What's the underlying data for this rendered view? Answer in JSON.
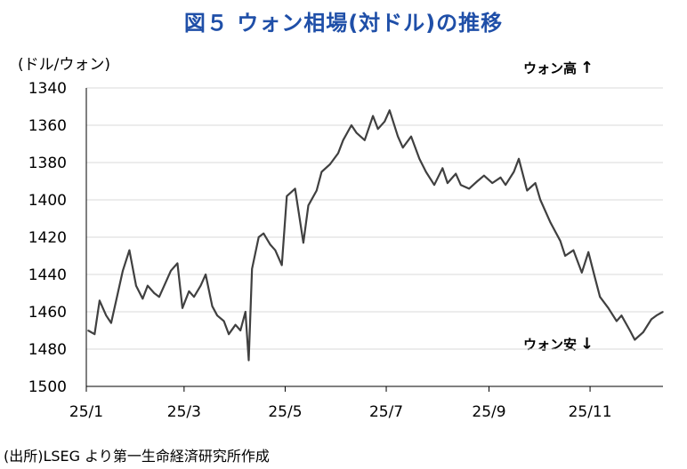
{
  "chart_data": {
    "type": "line",
    "title": "図５ ウォン相場(対ドル)の推移",
    "unit_label": "(ドル/ウォン)",
    "source": "(出所)LSEG より第一生命経済研究所作成",
    "annotation_top": "ウォン高",
    "annotation_bottom": "ウォン安",
    "arrow_up": "↑",
    "arrow_down": "↓",
    "y_inverted": true,
    "ylim": [
      1340,
      1500
    ],
    "yticks": [
      "1340",
      "1360",
      "1380",
      "1400",
      "1420",
      "1440",
      "1460",
      "1480",
      "1500"
    ],
    "xticks": [
      "25/1",
      "25/3",
      "25/5",
      "25/7",
      "25/9",
      "25/11"
    ],
    "grid": true,
    "line_color": "#404040",
    "series": [
      {
        "x": [
          "2025-01-02",
          "2025-01-06",
          "2025-01-09",
          "2025-01-13",
          "2025-01-16",
          "2025-01-20",
          "2025-01-23",
          "2025-01-27",
          "2025-01-31",
          "2025-02-04",
          "2025-02-07",
          "2025-02-11",
          "2025-02-14",
          "2025-02-18",
          "2025-02-21",
          "2025-02-25",
          "2025-02-28",
          "2025-03-04",
          "2025-03-07",
          "2025-03-11",
          "2025-03-14",
          "2025-03-18",
          "2025-03-21",
          "2025-03-25",
          "2025-03-28",
          "2025-04-01",
          "2025-04-04",
          "2025-04-07",
          "2025-04-09",
          "2025-04-11",
          "2025-04-15",
          "2025-04-18",
          "2025-04-22",
          "2025-04-25",
          "2025-04-29",
          "2025-05-02",
          "2025-05-07",
          "2025-05-12",
          "2025-05-15",
          "2025-05-20",
          "2025-05-23",
          "2025-05-28",
          "2025-06-02",
          "2025-06-05",
          "2025-06-10",
          "2025-06-13",
          "2025-06-18",
          "2025-06-23",
          "2025-06-26",
          "2025-06-30",
          "2025-07-03",
          "2025-07-08",
          "2025-07-11",
          "2025-07-16",
          "2025-07-21",
          "2025-07-25",
          "2025-07-30",
          "2025-08-04",
          "2025-08-07",
          "2025-08-12",
          "2025-08-15",
          "2025-08-20",
          "2025-08-25",
          "2025-08-29",
          "2025-09-03",
          "2025-09-08",
          "2025-09-11",
          "2025-09-16",
          "2025-09-19",
          "2025-09-24",
          "2025-09-29",
          "2025-10-02",
          "2025-10-08",
          "2025-10-14",
          "2025-10-17",
          "2025-10-22",
          "2025-10-27",
          "2025-10-31",
          "2025-11-04",
          "2025-11-07",
          "2025-11-12",
          "2025-11-17",
          "2025-11-20",
          "2025-11-25",
          "2025-11-28",
          "2025-12-03",
          "2025-12-08",
          "2025-12-11",
          "2025-12-15"
        ],
        "y": [
          1470,
          1472,
          1454,
          1462,
          1466,
          1450,
          1438,
          1427,
          1446,
          1453,
          1446,
          1450,
          1452,
          1444,
          1438,
          1434,
          1458,
          1449,
          1452,
          1446,
          1440,
          1457,
          1462,
          1465,
          1472,
          1467,
          1470,
          1460,
          1486,
          1437,
          1420,
          1418,
          1424,
          1427,
          1435,
          1398,
          1394,
          1423,
          1403,
          1395,
          1385,
          1381,
          1375,
          1368,
          1360,
          1364,
          1368,
          1355,
          1362,
          1358,
          1352,
          1366,
          1372,
          1366,
          1378,
          1385,
          1392,
          1383,
          1391,
          1386,
          1392,
          1394,
          1390,
          1387,
          1391,
          1388,
          1392,
          1385,
          1378,
          1395,
          1391,
          1400,
          1412,
          1422,
          1430,
          1427,
          1439,
          1428,
          1442,
          1452,
          1458,
          1465,
          1462,
          1470,
          1475,
          1471,
          1464,
          1462,
          1460
        ]
      }
    ]
  }
}
